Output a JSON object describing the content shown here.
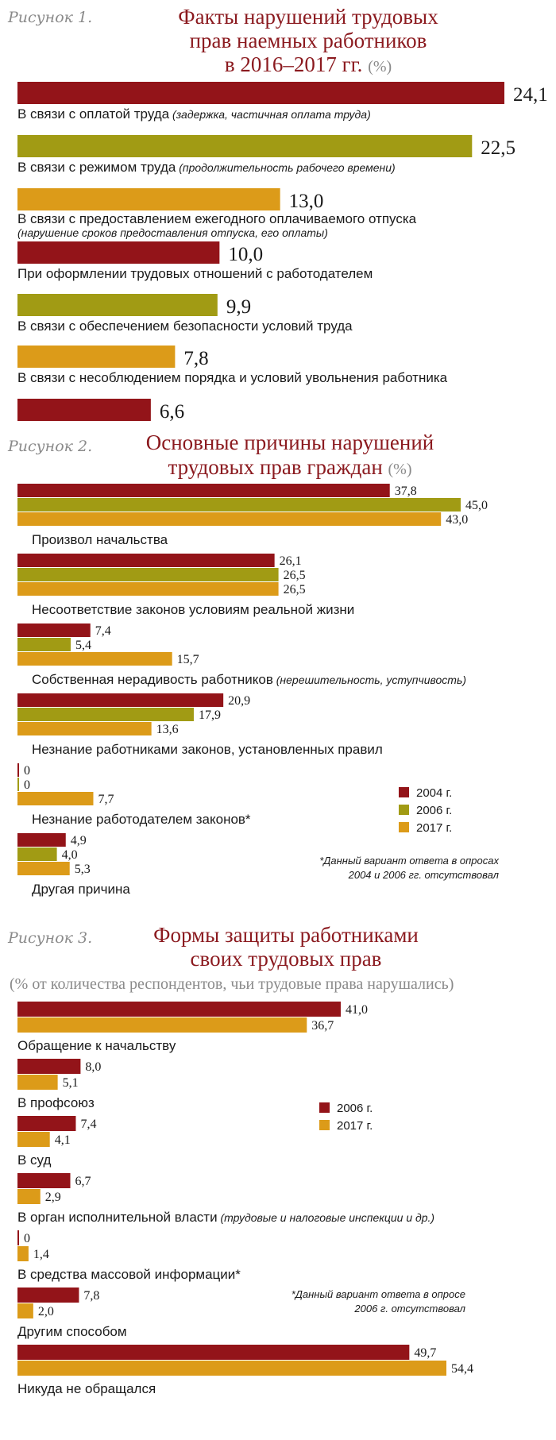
{
  "colors": {
    "y2004": "#931419",
    "y2006": "#a19b14",
    "y2017": "#dc9b19",
    "red": "#931419",
    "olive": "#a19b14",
    "orange": "#dc9b19"
  },
  "chart_data": [
    {
      "type": "bar",
      "figure_label": "Рисунок 1.",
      "title_lines": [
        "Факты нарушений трудовых",
        "прав наемных работников",
        "в 2016–2017 гг."
      ],
      "unit": "(%)",
      "categories": [
        {
          "label": "В связи с оплатой труда",
          "note": "(задержка, частичная оплата труда)",
          "value": 24.1,
          "display": "24,1",
          "color": "red"
        },
        {
          "label": "В связи с режимом труда",
          "note": "(продолжительность рабочего времени)",
          "value": 22.5,
          "display": "22,5",
          "color": "olive"
        },
        {
          "label": "В связи с предоставлением ежегодного оплачиваемого отпуска",
          "note": "(нарушение сроков предоставления отпуска, его оплаты)",
          "value": 13.0,
          "display": "13,0",
          "color": "orange"
        },
        {
          "label": "При оформлении трудовых отношений с работодателем",
          "note": "",
          "value": 10.0,
          "display": "10,0",
          "color": "red"
        },
        {
          "label": "В связи с обеспечением безопасности условий труда",
          "note": "",
          "value": 9.9,
          "display": "9,9",
          "color": "olive"
        },
        {
          "label": "В связи с несоблюдением порядка и условий увольнения работника",
          "note": "",
          "value": 7.8,
          "display": "7,8",
          "color": "orange"
        },
        {
          "label": "",
          "note": "",
          "value": 6.6,
          "display": "6,6",
          "color": "red"
        }
      ]
    },
    {
      "type": "bar",
      "figure_label": "Рисунок 2.",
      "title_lines": [
        "Основные причины нарушений",
        "трудовых прав граждан"
      ],
      "unit": "(%)",
      "series": [
        {
          "name": "2004 г.",
          "color": "#931419"
        },
        {
          "name": "2006 г.",
          "color": "#a19b14"
        },
        {
          "name": "2017 г.",
          "color": "#dc9b19"
        }
      ],
      "categories": [
        {
          "label": "Произвол начальства",
          "note": "",
          "values": [
            37.8,
            45.0,
            43.0
          ],
          "display": [
            "37,8",
            "45,0",
            "43,0"
          ]
        },
        {
          "label": "Несоответствие законов условиям реальной жизни",
          "note": "",
          "values": [
            26.1,
            26.5,
            26.5
          ],
          "display": [
            "26,1",
            "26,5",
            "26,5"
          ]
        },
        {
          "label": "Собственная нерадивость работников",
          "note": "(нерешительность, уступчивость)",
          "values": [
            7.4,
            5.4,
            15.7
          ],
          "display": [
            "7,4",
            "5,4",
            "15,7"
          ]
        },
        {
          "label": "Незнание работниками законов, установленных правил",
          "note": "",
          "values": [
            20.9,
            17.9,
            13.6
          ],
          "display": [
            "20,9",
            "17,9",
            "13,6"
          ]
        },
        {
          "label": "Незнание работодателем законов*",
          "note": "",
          "values": [
            0,
            0,
            7.7
          ],
          "display": [
            "0",
            "0",
            "7,7"
          ]
        },
        {
          "label": "Другая причина",
          "note": "",
          "values": [
            4.9,
            4.0,
            5.3
          ],
          "display": [
            "4,9",
            "4,0",
            "5,3"
          ]
        }
      ],
      "footnote_lines": [
        "*Данный вариант ответа в опросах",
        "2004 и 2006 гг. отсутствовал"
      ]
    },
    {
      "type": "bar",
      "figure_label": "Рисунок 3.",
      "title_lines": [
        "Формы защиты работниками",
        "своих трудовых прав"
      ],
      "subtitle": "(% от количества респондентов, чьи трудовые права нарушались)",
      "series": [
        {
          "name": "2006 г.",
          "color": "#931419"
        },
        {
          "name": "2017 г.",
          "color": "#dc9b19"
        }
      ],
      "categories": [
        {
          "label": "Обращение к начальству",
          "note": "",
          "values": [
            41.0,
            36.7
          ],
          "display": [
            "41,0",
            "36,7"
          ]
        },
        {
          "label": "В профсоюз",
          "note": "",
          "values": [
            8.0,
            5.1
          ],
          "display": [
            "8,0",
            "5,1"
          ]
        },
        {
          "label": "В суд",
          "note": "",
          "values": [
            7.4,
            4.1
          ],
          "display": [
            "7,4",
            "4,1"
          ]
        },
        {
          "label": "В орган исполнительной власти",
          "note": "(трудовые и налоговые инспекции и др.)",
          "values": [
            6.7,
            2.9
          ],
          "display": [
            "6,7",
            "2,9"
          ]
        },
        {
          "label": "В средства массовой информации*",
          "note": "",
          "values": [
            0,
            1.4
          ],
          "display": [
            "0",
            "1,4"
          ]
        },
        {
          "label": "Другим способом",
          "note": "",
          "values": [
            7.8,
            2.0
          ],
          "display": [
            "7,8",
            "2,0"
          ]
        },
        {
          "label": "Никуда не обращался",
          "note": "",
          "values": [
            49.7,
            54.4
          ],
          "display": [
            "49,7",
            "54,4"
          ]
        }
      ],
      "footnote_lines": [
        "*Данный вариант ответа в опросе",
        "2006 г. отсутствовал"
      ]
    }
  ]
}
